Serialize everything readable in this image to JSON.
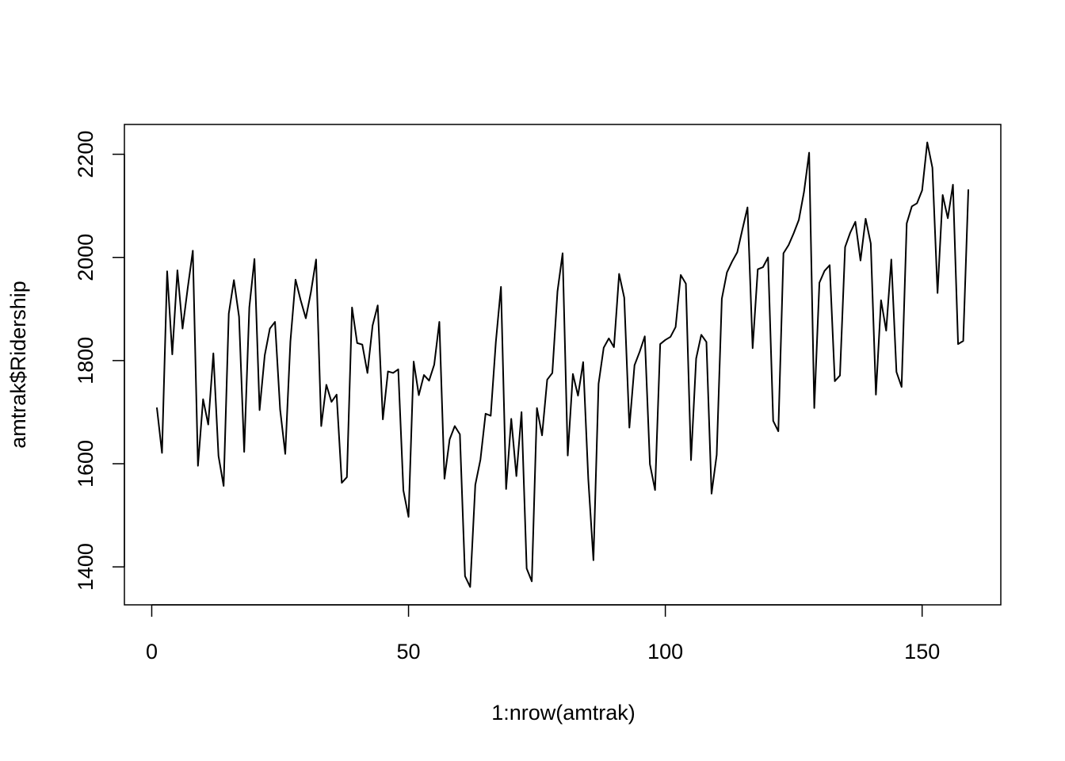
{
  "chart_data": {
    "type": "line",
    "x_label": "1:nrow(amtrak)",
    "y_label": "amtrak$Ridership",
    "color": "#000000",
    "x": [
      1,
      2,
      3,
      4,
      5,
      6,
      7,
      8,
      9,
      10,
      11,
      12,
      13,
      14,
      15,
      16,
      17,
      18,
      19,
      20,
      21,
      22,
      23,
      24,
      25,
      26,
      27,
      28,
      29,
      30,
      31,
      32,
      33,
      34,
      35,
      36,
      37,
      38,
      39,
      40,
      41,
      42,
      43,
      44,
      45,
      46,
      47,
      48,
      49,
      50,
      51,
      52,
      53,
      54,
      55,
      56,
      57,
      58,
      59,
      60,
      61,
      62,
      63,
      64,
      65,
      66,
      67,
      68,
      69,
      70,
      71,
      72,
      73,
      74,
      75,
      76,
      77,
      78,
      79,
      80,
      81,
      82,
      83,
      84,
      85,
      86,
      87,
      88,
      89,
      90,
      91,
      92,
      93,
      94,
      95,
      96,
      97,
      98,
      99,
      100,
      101,
      102,
      103,
      104,
      105,
      106,
      107,
      108,
      109,
      110,
      111,
      112,
      113,
      114,
      115,
      116,
      117,
      118,
      119,
      120,
      121,
      122,
      123,
      124,
      125,
      126,
      127,
      128,
      129,
      130,
      131,
      132,
      133,
      134,
      135,
      136,
      137,
      138,
      139,
      140,
      141,
      142,
      143,
      144,
      145,
      146,
      147,
      148,
      149,
      150,
      151,
      152,
      153,
      154,
      155,
      156,
      157,
      158,
      159
    ],
    "values": [
      1709,
      1621,
      1973,
      1812,
      1975,
      1862,
      1940,
      2013,
      1596,
      1725,
      1676,
      1814,
      1615,
      1557,
      1891,
      1956,
      1885,
      1623,
      1903,
      1997,
      1704,
      1810,
      1862,
      1875,
      1705,
      1619,
      1837,
      1957,
      1917,
      1882,
      1933,
      1996,
      1673,
      1753,
      1720,
      1734,
      1563,
      1574,
      1903,
      1834,
      1831,
      1776,
      1868,
      1907,
      1686,
      1779,
      1776,
      1783,
      1548,
      1497,
      1798,
      1733,
      1772,
      1761,
      1792,
      1875,
      1571,
      1647,
      1673,
      1657,
      1382,
      1361,
      1559,
      1608,
      1697,
      1693,
      1836,
      1943,
      1551,
      1687,
      1576,
      1700,
      1397,
      1372,
      1708,
      1655,
      1763,
      1776,
      1934,
      2008,
      1616,
      1774,
      1732,
      1797,
      1570,
      1413,
      1755,
      1825,
      1843,
      1826,
      1968,
      1922,
      1670,
      1791,
      1817,
      1847,
      1599,
      1549,
      1832,
      1840,
      1846,
      1865,
      1966,
      1949,
      1607,
      1804,
      1850,
      1836,
      1542,
      1617,
      1920,
      1971,
      1992,
      2010,
      2054,
      2097,
      1824,
      1977,
      1981,
      2000,
      1683,
      1663,
      2008,
      2024,
      2047,
      2073,
      2127,
      2203,
      1708,
      1951,
      1974,
      1985,
      1760,
      1771,
      2020,
      2048,
      2069,
      1994,
      2075,
      2027,
      1734,
      1917,
      1858,
      1996,
      1778,
      1749,
      2066,
      2099,
      2105,
      2130,
      2223,
      2174,
      1931,
      2121,
      2076,
      2141,
      1832,
      1838,
      2132
    ],
    "xlim": [
      -5.32,
      165.32
    ],
    "xticks": [
      0,
      50,
      100,
      150
    ],
    "ylim": [
      1326.4,
      2257.8
    ],
    "yticks": [
      1400,
      1600,
      1800,
      2000,
      2200
    ]
  }
}
